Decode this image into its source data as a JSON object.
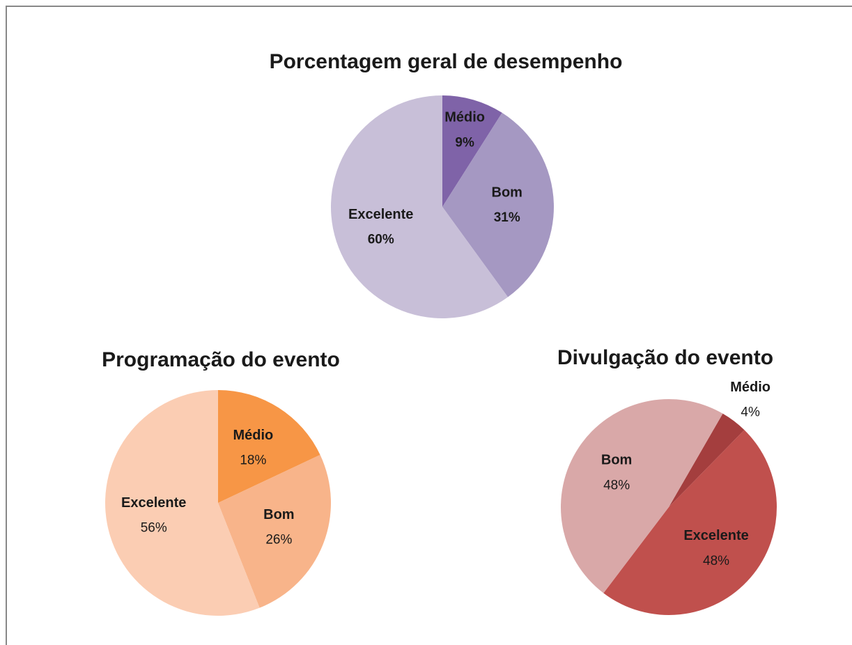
{
  "chart_data": [
    {
      "type": "pie",
      "title": "Porcentagem geral de desempenho",
      "categories": [
        "Médio",
        "Bom",
        "Excelente"
      ],
      "values": [
        9,
        31,
        60
      ],
      "value_labels": [
        "9%",
        "31%",
        "60%"
      ],
      "colors": [
        "#7f63a8",
        "#a598c2",
        "#c8bfd8"
      ],
      "startangle": 0,
      "value_labels_bold": true
    },
    {
      "type": "pie",
      "title": "Programação do evento",
      "categories": [
        "Médio",
        "Bom",
        "Excelente"
      ],
      "values": [
        18,
        26,
        56
      ],
      "value_labels": [
        "18%",
        "26%",
        "56%"
      ],
      "colors": [
        "#f79646",
        "#f8b48a",
        "#fbcdb3"
      ],
      "startangle": 0,
      "value_labels_bold": false
    },
    {
      "type": "pie",
      "title": "Divulgação do evento",
      "categories": [
        "Médio",
        "Excelente",
        "Bom"
      ],
      "values": [
        4,
        48,
        48
      ],
      "value_labels": [
        "4%",
        "48%",
        "48%"
      ],
      "colors": [
        "#a43e3e",
        "#c0504d",
        "#d9a8a8"
      ],
      "startangle": 30,
      "value_labels_bold": false
    }
  ]
}
